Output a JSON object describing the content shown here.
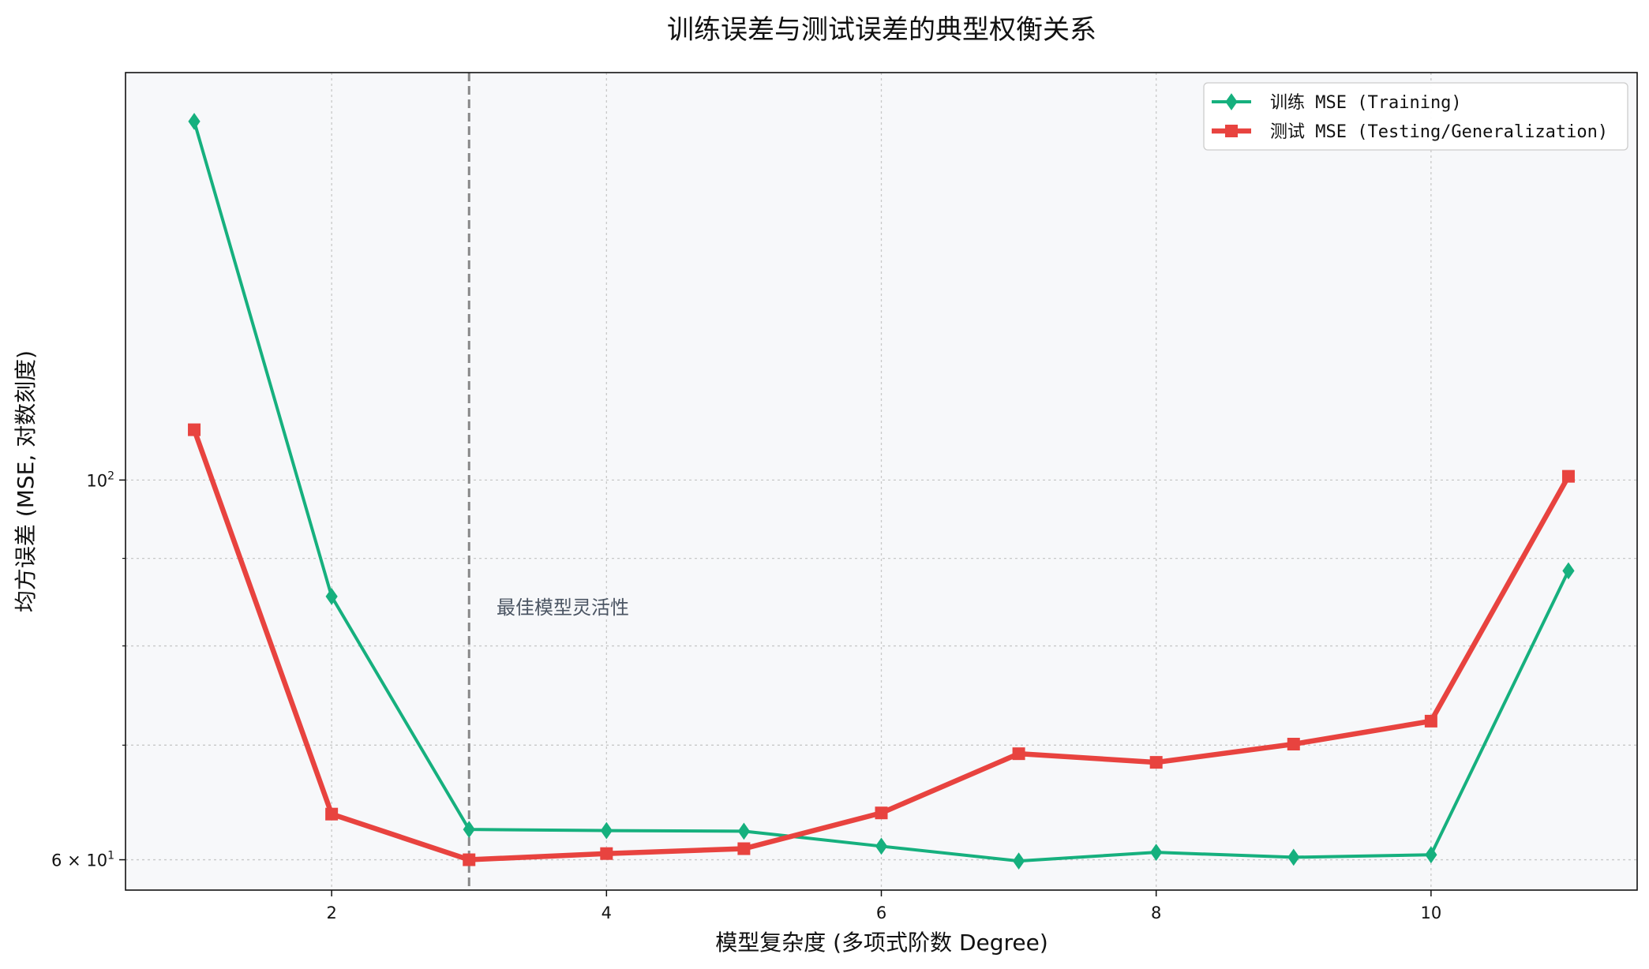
{
  "chart_data": {
    "type": "line",
    "title": "训练误差与测试误差的典型权衡关系",
    "xlabel": "模型复杂度 (多项式阶数 Degree)",
    "ylabel": "均方误差 (MSE, 对数刻度)",
    "xlim": [
      0.5,
      11.5
    ],
    "ylim": [
      57.6,
      173
    ],
    "yscale": "log",
    "xticks": [
      2,
      4,
      6,
      8,
      10
    ],
    "ytick_labels": [
      {
        "value": 100,
        "base": "10",
        "exp": "2"
      },
      {
        "value": 60,
        "base": "6 × 10",
        "exp": "1"
      }
    ],
    "yminor_grid": [
      70,
      80,
      90
    ],
    "grid": true,
    "legend_position": "top-right",
    "x": [
      1,
      2,
      3,
      4,
      5,
      6,
      7,
      8,
      9,
      10,
      11
    ],
    "series": [
      {
        "name": "训练 MSE (Training)",
        "color": "#16b07e",
        "marker": "diamond",
        "values": [
          162,
          85.5,
          62.5,
          62.4,
          62.35,
          61.1,
          59.9,
          60.6,
          60.2,
          60.4,
          88.5
        ]
      },
      {
        "name": "测试 MSE (Testing/Generalization)",
        "color": "#e8433f",
        "marker": "square",
        "values": [
          107,
          63.8,
          60,
          60.5,
          60.9,
          63.9,
          69.2,
          68.4,
          70.1,
          72.3,
          100.5
        ]
      }
    ],
    "vline": {
      "x": 3,
      "color": "#888888"
    },
    "annotation": {
      "text": "最佳模型灵活性",
      "x": 3.2,
      "y": 83.5
    }
  },
  "colors": {
    "plot_bg": "#f7f8fa",
    "axis": "#111111",
    "annotation": "#4b5563"
  }
}
